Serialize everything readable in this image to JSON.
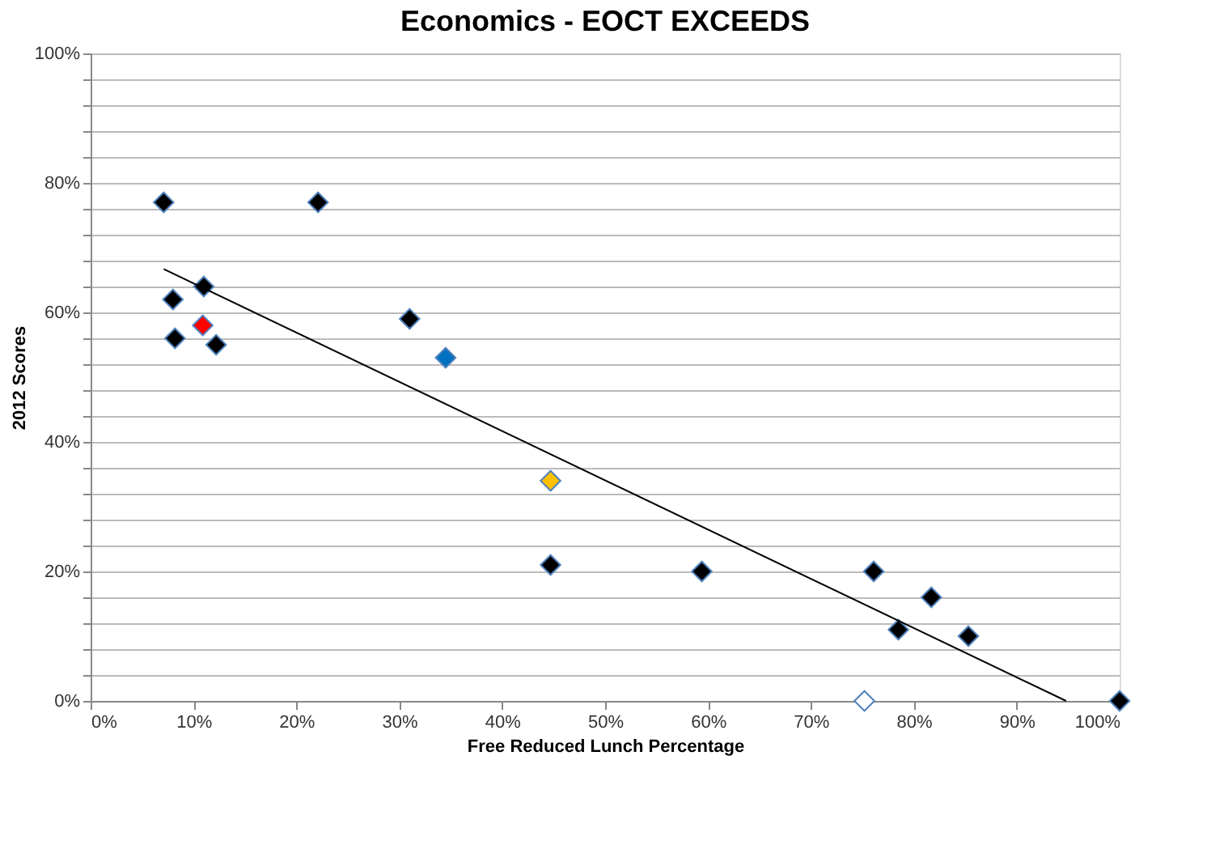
{
  "chart_data": {
    "type": "scatter",
    "title": "Economics - EOCT EXCEEDS",
    "xlabel": "Free Reduced Lunch Percentage",
    "ylabel": "2012 Scores",
    "xlim": [
      0,
      100
    ],
    "ylim": [
      0,
      100
    ],
    "xticks": [
      {
        "value": 0,
        "label": "0%"
      },
      {
        "value": 10,
        "label": "10%"
      },
      {
        "value": 20,
        "label": "20%"
      },
      {
        "value": 30,
        "label": "30%"
      },
      {
        "value": 40,
        "label": "40%"
      },
      {
        "value": 50,
        "label": "50%"
      },
      {
        "value": 60,
        "label": "60%"
      },
      {
        "value": 70,
        "label": "70%"
      },
      {
        "value": 80,
        "label": "80%"
      },
      {
        "value": 90,
        "label": "90%"
      },
      {
        "value": 100,
        "label": "100%"
      }
    ],
    "yticks": [
      {
        "value": 0,
        "label": "0%"
      },
      {
        "value": 4,
        "label": null
      },
      {
        "value": 8,
        "label": null
      },
      {
        "value": 12,
        "label": null
      },
      {
        "value": 16,
        "label": null
      },
      {
        "value": 20,
        "label": "20%"
      },
      {
        "value": 24,
        "label": null
      },
      {
        "value": 28,
        "label": null
      },
      {
        "value": 32,
        "label": null
      },
      {
        "value": 36,
        "label": null
      },
      {
        "value": 40,
        "label": "40%"
      },
      {
        "value": 44,
        "label": null
      },
      {
        "value": 48,
        "label": null
      },
      {
        "value": 52,
        "label": null
      },
      {
        "value": 56,
        "label": null
      },
      {
        "value": 60,
        "label": "60%"
      },
      {
        "value": 64,
        "label": null
      },
      {
        "value": 68,
        "label": null
      },
      {
        "value": 72,
        "label": null
      },
      {
        "value": 76,
        "label": null
      },
      {
        "value": 80,
        "label": "80%"
      },
      {
        "value": 84,
        "label": null
      },
      {
        "value": 88,
        "label": null
      },
      {
        "value": 92,
        "label": null
      },
      {
        "value": 96,
        "label": null
      },
      {
        "value": 100,
        "label": "100%"
      }
    ],
    "grid": "y",
    "marker": "diamond",
    "series": [
      {
        "color": "#000000",
        "x": [
          7.1,
          22.1,
          11.0,
          8.0,
          8.2,
          12.2,
          31.0,
          44.7,
          59.4,
          76.1,
          81.7,
          78.5,
          85.3,
          100
        ],
        "values": [
          77,
          77,
          64,
          62,
          56,
          55,
          59,
          21,
          20,
          20,
          16,
          11,
          10,
          0
        ]
      },
      {
        "color": "#ff0000",
        "x": [
          10.9
        ],
        "values": [
          58
        ]
      },
      {
        "color": "#0070c0",
        "x": [
          34.5
        ],
        "values": [
          53
        ]
      },
      {
        "color": "#ffc000",
        "x": [
          44.7
        ],
        "values": [
          34
        ]
      },
      {
        "color": "#ffffff",
        "x": [
          75.2
        ],
        "values": [
          0
        ]
      },
      {
        "type": "line",
        "color": "#000000",
        "marker": "none",
        "x": [
          7.1,
          94.8
        ],
        "values": [
          66.7,
          0
        ]
      }
    ]
  }
}
